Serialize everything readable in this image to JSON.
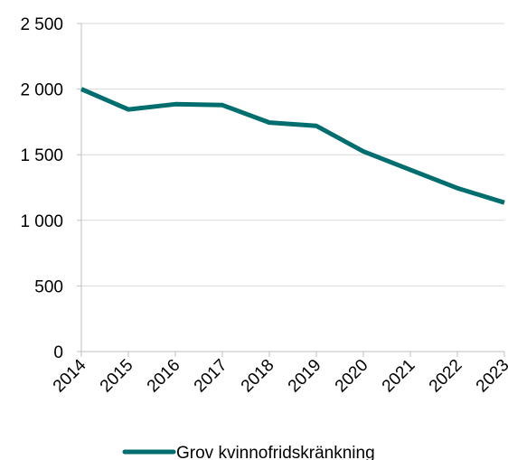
{
  "chart_data": {
    "type": "line",
    "title": "",
    "xlabel": "",
    "ylabel": "",
    "x": [
      "2014",
      "2015",
      "2016",
      "2017",
      "2018",
      "2019",
      "2020",
      "2021",
      "2022",
      "2023"
    ],
    "series": [
      {
        "name": "Grov kvinnofridskränkning",
        "color": "#006E6E",
        "values": [
          2000,
          1845,
          1885,
          1878,
          1745,
          1720,
          1525,
          1385,
          1245,
          1135
        ]
      }
    ],
    "ylim": [
      0,
      2500
    ],
    "yticks": [
      {
        "value": 0,
        "label": "0"
      },
      {
        "value": 500,
        "label": "500"
      },
      {
        "value": 1000,
        "label": "1 000"
      },
      {
        "value": 1500,
        "label": "1 500"
      },
      {
        "value": 2000,
        "label": "2 000"
      },
      {
        "value": 2500,
        "label": "2 500"
      }
    ],
    "grid": true,
    "legend": "bottom"
  }
}
